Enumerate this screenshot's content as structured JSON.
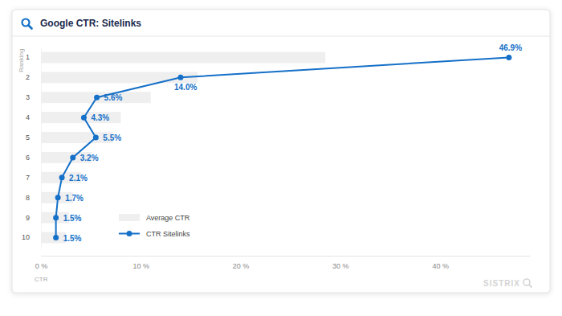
{
  "chart_data": {
    "type": "bar",
    "title": "Google CTR: Sitelinks",
    "x_label": "CTR",
    "y_label": "Ranking",
    "orientation": "horizontal",
    "categories": [
      "1",
      "2",
      "3",
      "4",
      "5",
      "6",
      "7",
      "8",
      "9",
      "10"
    ],
    "xlim": [
      0,
      49
    ],
    "xticks": [
      {
        "value": 0,
        "label": "0 %"
      },
      {
        "value": 10,
        "label": "10 %"
      },
      {
        "value": 20,
        "label": "20 %"
      },
      {
        "value": 30,
        "label": "30 %"
      },
      {
        "value": 40,
        "label": "40 %"
      }
    ],
    "grid": false,
    "legend": "lower left",
    "series": [
      {
        "name": "Average CTR",
        "type": "bar",
        "color": "#efefef",
        "values": [
          28.5,
          15.7,
          11.0,
          8.0,
          7.2,
          5.1,
          4.0,
          3.2,
          2.8,
          2.5
        ]
      },
      {
        "name": "CTR Sitelinks",
        "type": "line",
        "color": "#1570c8",
        "marker": "circle",
        "data_labels": true,
        "values": [
          46.9,
          14.0,
          5.6,
          4.3,
          5.5,
          3.2,
          2.1,
          1.7,
          1.5,
          1.5
        ],
        "value_labels": [
          "46.9%",
          "14.0%",
          "5.6%",
          "4.3%",
          "5.5%",
          "3.2%",
          "2.1%",
          "1.7%",
          "1.5%",
          "1.5%"
        ]
      }
    ],
    "annotations": [
      "SISTRIX"
    ]
  }
}
